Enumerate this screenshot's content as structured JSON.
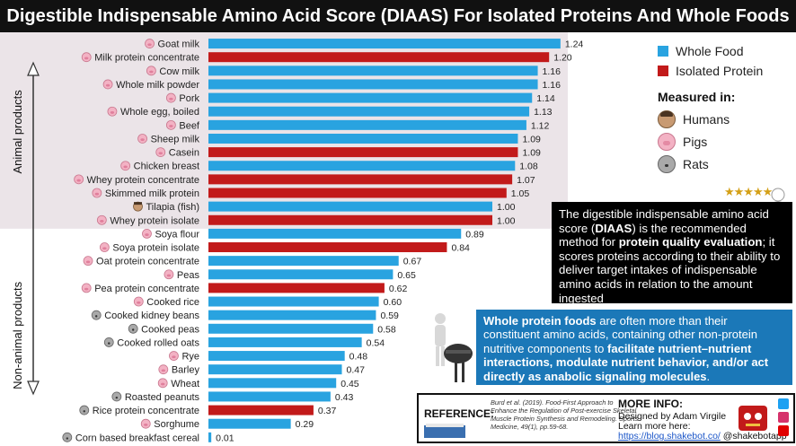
{
  "title": "Digestible Indispensable Amino Acid Score (DIAAS) For Isolated Proteins And Whole Foods",
  "colors": {
    "whole_food": "#29a3e0",
    "isolated_protein": "#c21a1a",
    "animal_bg": "#ebe4e8"
  },
  "groups": {
    "animal": "Animal products",
    "non_animal": "Non-animal products"
  },
  "legend": {
    "whole_food": "Whole Food",
    "isolated_protein": "Isolated Protein"
  },
  "measured": {
    "title": "Measured in:",
    "humans": "Humans",
    "pigs": "Pigs",
    "rats": "Rats"
  },
  "stars": "★★★★★",
  "definition": {
    "p1": "The digestible indispensable amino acid score (",
    "b1": "DIAAS",
    "p2": ") is the recommended method for ",
    "b2": "protein quality evaluation",
    "p3": "; it scores proteins according to their ability to deliver target intakes of indispensable amino acids in relation to the amount ingested"
  },
  "whole_protein": {
    "b1": "Whole protein foods",
    "p1": " are often more than their constituent amino acids, containing other non-protein nutritive components to ",
    "b2": "facilitate nutrient–nutrient interactions, modulate nutrient behavior, and/or act directly as anabolic signaling molecules",
    "p2": "."
  },
  "reference": {
    "label": "REFERENCE:",
    "text": "Burd et al. (2019). Food-First Approach to Enhance the Regulation of Post-exercise Skeletal Muscle Protein Synthesis and Remodeling. Sports Medicine, 49(1), pp.59-68."
  },
  "more_info": {
    "title": "MORE INFO:",
    "designed": "Designed by Adam Virgile",
    "learn": "Learn more here:",
    "link": "https://blog.shakebot.co/",
    "handle": " @shakebotapp"
  },
  "chart_data": {
    "type": "bar",
    "orientation": "horizontal",
    "title": "Digestible Indispensable Amino Acid Score (DIAAS) For Isolated Proteins And Whole Foods",
    "xlim": [
      0,
      1.3
    ],
    "grid": false,
    "legend_position": "top-right",
    "items": [
      {
        "label": "Goat milk",
        "value": 1.24,
        "value_label": "1.24",
        "type": "whole",
        "measured": "pigs",
        "group": "animal"
      },
      {
        "label": "Milk protein concentrate",
        "value": 1.2,
        "value_label": "1.20",
        "type": "isolated",
        "measured": "pigs",
        "group": "animal"
      },
      {
        "label": "Cow milk",
        "value": 1.16,
        "value_label": "1.16",
        "type": "whole",
        "measured": "pigs",
        "group": "animal"
      },
      {
        "label": "Whole milk powder",
        "value": 1.16,
        "value_label": "1.16",
        "type": "whole",
        "measured": "pigs",
        "group": "animal"
      },
      {
        "label": "Pork",
        "value": 1.14,
        "value_label": "1.14",
        "type": "whole",
        "measured": "pigs",
        "group": "animal"
      },
      {
        "label": "Whole egg, boiled",
        "value": 1.13,
        "value_label": "1.13",
        "type": "whole",
        "measured": "pigs",
        "group": "animal"
      },
      {
        "label": "Beef",
        "value": 1.12,
        "value_label": "1.12",
        "type": "whole",
        "measured": "pigs",
        "group": "animal"
      },
      {
        "label": "Sheep milk",
        "value": 1.09,
        "value_label": "1.09",
        "type": "whole",
        "measured": "pigs",
        "group": "animal"
      },
      {
        "label": "Casein",
        "value": 1.09,
        "value_label": "1.09",
        "type": "isolated",
        "measured": "pigs",
        "group": "animal"
      },
      {
        "label": "Chicken breast",
        "value": 1.08,
        "value_label": "1.08",
        "type": "whole",
        "measured": "pigs",
        "group": "animal"
      },
      {
        "label": "Whey protein concentrate",
        "value": 1.07,
        "value_label": "1.07",
        "type": "isolated",
        "measured": "pigs",
        "group": "animal"
      },
      {
        "label": "Skimmed milk protein",
        "value": 1.05,
        "value_label": "1.05",
        "type": "isolated",
        "measured": "pigs",
        "group": "animal"
      },
      {
        "label": "Tilapia (fish)",
        "value": 1.0,
        "value_label": "1.00",
        "type": "whole",
        "measured": "humans",
        "group": "animal"
      },
      {
        "label": "Whey protein isolate",
        "value": 1.0,
        "value_label": "1.00",
        "type": "isolated",
        "measured": "pigs",
        "group": "animal"
      },
      {
        "label": "Soya flour",
        "value": 0.89,
        "value_label": "0.89",
        "type": "whole",
        "measured": "pigs",
        "group": "non_animal"
      },
      {
        "label": "Soya protein isolate",
        "value": 0.84,
        "value_label": "0.84",
        "type": "isolated",
        "measured": "pigs",
        "group": "non_animal"
      },
      {
        "label": "Oat protein concentrate",
        "value": 0.67,
        "value_label": "0.67",
        "type": "whole",
        "measured": "pigs",
        "group": "non_animal"
      },
      {
        "label": "Peas",
        "value": 0.65,
        "value_label": "0.65",
        "type": "whole",
        "measured": "pigs",
        "group": "non_animal"
      },
      {
        "label": "Pea protein concentrate",
        "value": 0.62,
        "value_label": "0.62",
        "type": "isolated",
        "measured": "pigs",
        "group": "non_animal"
      },
      {
        "label": "Cooked rice",
        "value": 0.6,
        "value_label": "0.60",
        "type": "whole",
        "measured": "pigs",
        "group": "non_animal"
      },
      {
        "label": "Cooked kidney beans",
        "value": 0.59,
        "value_label": "0.59",
        "type": "whole",
        "measured": "rats",
        "group": "non_animal"
      },
      {
        "label": "Cooked peas",
        "value": 0.58,
        "value_label": "0.58",
        "type": "whole",
        "measured": "rats",
        "group": "non_animal"
      },
      {
        "label": "Cooked rolled oats",
        "value": 0.54,
        "value_label": "0.54",
        "type": "whole",
        "measured": "rats",
        "group": "non_animal"
      },
      {
        "label": "Rye",
        "value": 0.48,
        "value_label": "0.48",
        "type": "whole",
        "measured": "pigs",
        "group": "non_animal"
      },
      {
        "label": "Barley",
        "value": 0.47,
        "value_label": "0.47",
        "type": "whole",
        "measured": "pigs",
        "group": "non_animal"
      },
      {
        "label": "Wheat",
        "value": 0.45,
        "value_label": "0.45",
        "type": "whole",
        "measured": "pigs",
        "group": "non_animal"
      },
      {
        "label": "Roasted peanuts",
        "value": 0.43,
        "value_label": "0.43",
        "type": "whole",
        "measured": "rats",
        "group": "non_animal"
      },
      {
        "label": "Rice protein concentrate",
        "value": 0.37,
        "value_label": "0.37",
        "type": "isolated",
        "measured": "rats",
        "group": "non_animal"
      },
      {
        "label": "Sorghume",
        "value": 0.29,
        "value_label": "0.29",
        "type": "whole",
        "measured": "pigs",
        "group": "non_animal"
      },
      {
        "label": "Corn based breakfast cereal",
        "value": 0.01,
        "value_label": "0.01",
        "type": "whole",
        "measured": "rats",
        "group": "non_animal"
      }
    ]
  }
}
